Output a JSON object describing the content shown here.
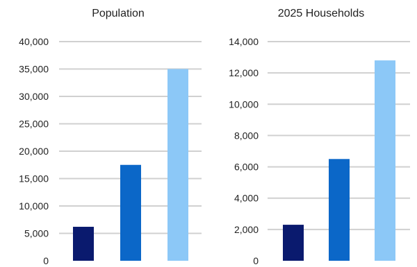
{
  "chart_data": [
    {
      "type": "bar",
      "title": "Population",
      "categories": [
        "",
        "",
        ""
      ],
      "values": [
        6200,
        17500,
        35000
      ],
      "colors": [
        "#0a1a6e",
        "#0b67c8",
        "#8cc8f7"
      ],
      "ylim": [
        0,
        40000
      ],
      "yticks": [
        0,
        5000,
        10000,
        15000,
        20000,
        25000,
        30000,
        35000,
        40000
      ],
      "ytick_labels": [
        "0",
        "5,000",
        "10,000",
        "15,000",
        "20,000",
        "25,000",
        "30,000",
        "35,000",
        "40,000"
      ],
      "grid": true,
      "xlabel": "",
      "ylabel": ""
    },
    {
      "type": "bar",
      "title": "2025 Households",
      "categories": [
        "",
        "",
        ""
      ],
      "values": [
        2300,
        6500,
        12800
      ],
      "colors": [
        "#0a1a6e",
        "#0b67c8",
        "#8cc8f7"
      ],
      "ylim": [
        0,
        14000
      ],
      "yticks": [
        0,
        2000,
        4000,
        6000,
        8000,
        10000,
        12000,
        14000
      ],
      "ytick_labels": [
        "0",
        "2,000",
        "4,000",
        "6,000",
        "8,000",
        "10,000",
        "12,000",
        "14,000"
      ],
      "grid": true,
      "xlabel": "",
      "ylabel": ""
    }
  ],
  "gridline_color": "#d0d0d0"
}
